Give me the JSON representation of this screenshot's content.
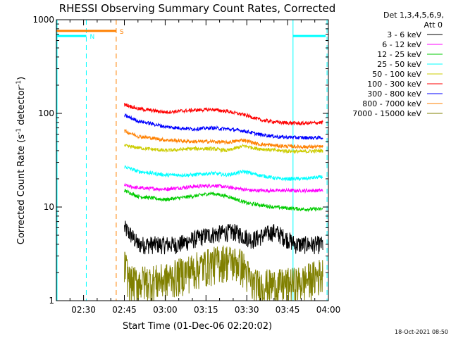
{
  "chart_data": {
    "type": "line",
    "title": "RHESSI Observing Summary Count Rates, Corrected",
    "xlabel": "Start Time (01-Dec-06 02:20:02)",
    "ylabel_main": "Corrected Count Rate (s",
    "ylabel_sup1": "-1",
    "ylabel_mid": " detector",
    "ylabel_sup2": "-1",
    "ylabel_end": ")",
    "yscale": "log",
    "ylim": [
      1,
      1000
    ],
    "xlim_minutes": [
      0,
      100
    ],
    "x_ticks": [
      {
        "m": 10,
        "label": "02:30"
      },
      {
        "m": 25,
        "label": "02:45"
      },
      {
        "m": 40,
        "label": "03:00"
      },
      {
        "m": 55,
        "label": "03:15"
      },
      {
        "m": 70,
        "label": "03:30"
      },
      {
        "m": 85,
        "label": "03:45"
      },
      {
        "m": 100,
        "label": "04:00"
      }
    ],
    "y_ticks": [
      {
        "v": 1,
        "label": "1"
      },
      {
        "v": 10,
        "label": "10"
      },
      {
        "v": 100,
        "label": "100"
      },
      {
        "v": 1000,
        "label": "1000"
      }
    ],
    "legend_header": [
      "Det 1,3,4,5,6,9,",
      "Att 0"
    ],
    "series": [
      {
        "name": "3 - 6 keV",
        "color": "#000000",
        "points": [
          [
            25,
            6
          ],
          [
            30,
            4
          ],
          [
            35,
            4
          ],
          [
            45,
            4
          ],
          [
            55,
            5
          ],
          [
            65,
            5.5
          ],
          [
            72,
            4.5
          ],
          [
            80,
            5.5
          ],
          [
            88,
            4
          ],
          [
            98,
            4
          ]
        ]
      },
      {
        "name": "6 - 12 keV",
        "color": "#ff00ff",
        "points": [
          [
            25,
            17
          ],
          [
            30,
            16
          ],
          [
            40,
            15.5
          ],
          [
            50,
            16.5
          ],
          [
            58,
            17
          ],
          [
            65,
            16
          ],
          [
            72,
            15
          ],
          [
            80,
            15
          ],
          [
            90,
            15
          ],
          [
            98,
            15
          ]
        ]
      },
      {
        "name": "12 - 25 keV",
        "color": "#00cc00",
        "points": [
          [
            25,
            15
          ],
          [
            30,
            13
          ],
          [
            40,
            12
          ],
          [
            50,
            13
          ],
          [
            57,
            14
          ],
          [
            63,
            13
          ],
          [
            70,
            11
          ],
          [
            80,
            10
          ],
          [
            90,
            9.5
          ],
          [
            98,
            9.5
          ]
        ]
      },
      {
        "name": "25 - 50 keV",
        "color": "#00ffff",
        "points": [
          [
            25,
            27
          ],
          [
            30,
            24
          ],
          [
            40,
            22
          ],
          [
            50,
            22
          ],
          [
            57,
            23
          ],
          [
            63,
            22
          ],
          [
            69,
            24
          ],
          [
            74,
            22
          ],
          [
            82,
            20
          ],
          [
            90,
            20
          ],
          [
            98,
            21
          ]
        ]
      },
      {
        "name": "50 - 100 keV",
        "color": "#cccc00",
        "points": [
          [
            25,
            45
          ],
          [
            30,
            43
          ],
          [
            40,
            40
          ],
          [
            50,
            42
          ],
          [
            57,
            42
          ],
          [
            63,
            40
          ],
          [
            69,
            45
          ],
          [
            74,
            42
          ],
          [
            82,
            40
          ],
          [
            90,
            39
          ],
          [
            98,
            40
          ]
        ]
      },
      {
        "name": "100 - 300 keV",
        "color": "#ff0000",
        "points": [
          [
            25,
            125
          ],
          [
            30,
            112
          ],
          [
            40,
            103
          ],
          [
            50,
            108
          ],
          [
            57,
            110
          ],
          [
            63,
            105
          ],
          [
            70,
            95
          ],
          [
            75,
            85
          ],
          [
            82,
            80
          ],
          [
            90,
            78
          ],
          [
            98,
            80
          ]
        ]
      },
      {
        "name": "300 - 800 keV",
        "color": "#0000ff",
        "points": [
          [
            25,
            95
          ],
          [
            30,
            83
          ],
          [
            40,
            72
          ],
          [
            50,
            68
          ],
          [
            57,
            70
          ],
          [
            63,
            68
          ],
          [
            69,
            65
          ],
          [
            74,
            60
          ],
          [
            82,
            56
          ],
          [
            90,
            55
          ],
          [
            98,
            55
          ]
        ]
      },
      {
        "name": "800 - 7000 keV",
        "color": "#ff8000",
        "points": [
          [
            25,
            65
          ],
          [
            30,
            57
          ],
          [
            40,
            52
          ],
          [
            50,
            50
          ],
          [
            57,
            50
          ],
          [
            63,
            49
          ],
          [
            69,
            52
          ],
          [
            74,
            47
          ],
          [
            82,
            45
          ],
          [
            90,
            44
          ],
          [
            98,
            44
          ]
        ]
      },
      {
        "name": "7000 - 15000 keV",
        "color": "#808000",
        "points": [
          [
            25,
            2.5
          ],
          [
            27,
            1.6
          ],
          [
            40,
            1.7
          ],
          [
            52,
            2.3
          ],
          [
            62,
            2.8
          ],
          [
            68,
            2.5
          ],
          [
            72,
            1.5
          ],
          [
            82,
            1.5
          ],
          [
            90,
            1.6
          ],
          [
            98,
            2
          ]
        ]
      }
    ],
    "flags": [
      {
        "label": "N",
        "color": "#00ffff",
        "y": 670,
        "x0": 0,
        "x1": 11
      },
      {
        "label": "S",
        "color": "#ff8000",
        "y": 760,
        "x0": 0,
        "x1": 22
      },
      {
        "label": "",
        "color": "#00ffff",
        "y": 670,
        "x0": 87,
        "x1": 99
      }
    ],
    "vlines": [
      {
        "m": 11,
        "color": "#00ffff"
      },
      {
        "m": 22,
        "color": "#ff8000"
      },
      {
        "m": 99.5,
        "color": "#00ffff"
      }
    ],
    "solid_vlines": [
      {
        "m": 87,
        "color": "#00ffff"
      }
    ]
  },
  "footer_date": "18-Oct-2021 08:50"
}
